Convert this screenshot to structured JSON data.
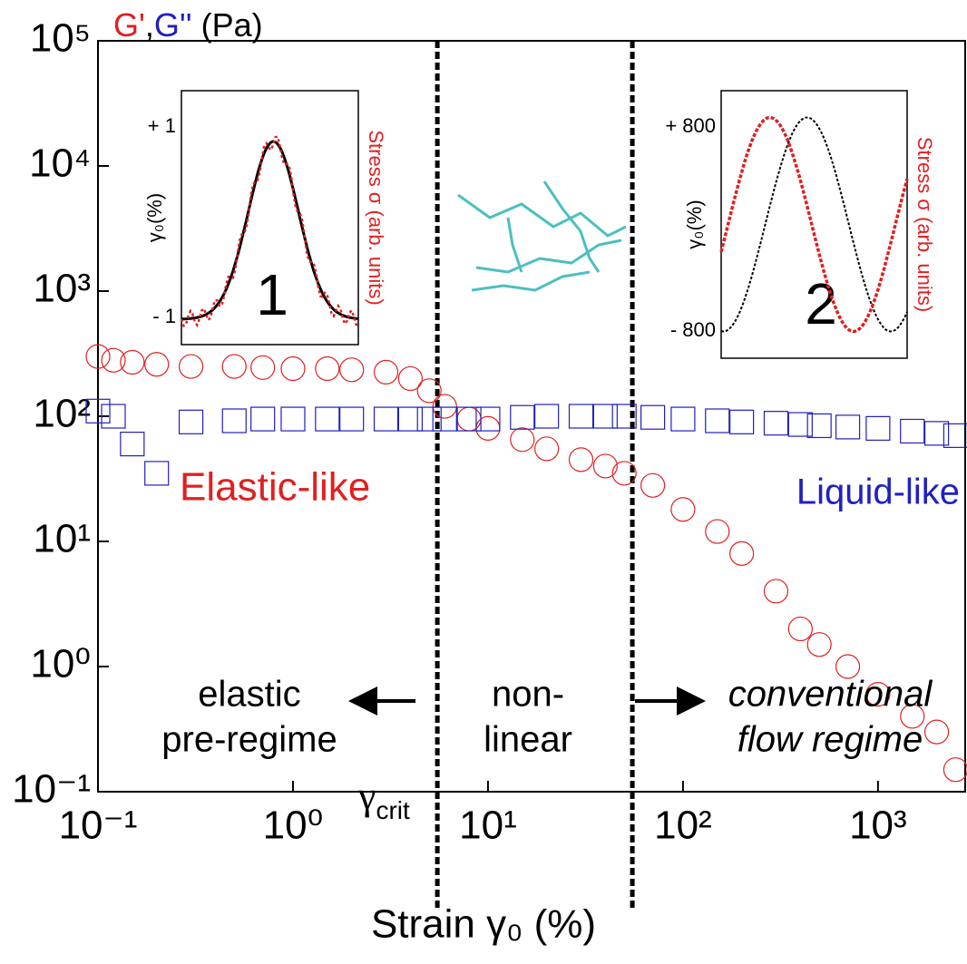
{
  "chart_data": {
    "type": "scatter",
    "log_x": true,
    "log_y": true,
    "xlim": [
      0.1,
      2800
    ],
    "ylim": [
      0.1,
      100000
    ],
    "xticks": [
      {
        "value": 0.1,
        "label": "10⁻¹"
      },
      {
        "value": 1,
        "label": "10⁰"
      },
      {
        "value": 10,
        "label": "10¹"
      },
      {
        "value": 100,
        "label": "10²"
      },
      {
        "value": 1000,
        "label": "10³"
      }
    ],
    "yticks": [
      {
        "value": 0.1,
        "label": "10⁻¹"
      },
      {
        "value": 1,
        "label": "10⁰"
      },
      {
        "value": 10,
        "label": "10¹"
      },
      {
        "value": 100,
        "label": "10²"
      },
      {
        "value": 1000,
        "label": "10³"
      },
      {
        "value": 10000,
        "label": "10⁴"
      },
      {
        "value": 100000,
        "label": "10⁵"
      }
    ],
    "x_label": "Strain γ₀ (%)",
    "y_label_separator": ",",
    "y_label_unit": "(Pa)",
    "x": [
      0.1,
      0.12,
      0.15,
      0.2,
      0.3,
      0.5,
      0.7,
      1,
      1.5,
      2,
      3,
      4,
      5,
      6,
      8,
      10,
      15,
      20,
      30,
      40,
      50,
      70,
      100,
      150,
      200,
      300,
      400,
      500,
      700,
      1000,
      1500,
      2000,
      2500
    ],
    "series": [
      {
        "name": "G'",
        "color": "#e02020",
        "marker": "circle",
        "values": [
          300,
          280,
          270,
          260,
          250,
          250,
          245,
          240,
          240,
          235,
          225,
          200,
          160,
          120,
          95,
          80,
          65,
          55,
          45,
          40,
          35,
          28,
          18,
          12,
          8,
          4,
          2,
          1.5,
          1,
          0.6,
          0.4,
          0.3,
          0.15
        ]
      },
      {
        "name": "G''",
        "color": "#2020c0",
        "marker": "square",
        "values": [
          110,
          100,
          60,
          35,
          90,
          92,
          95,
          95,
          95,
          95,
          95,
          95,
          95,
          95,
          95,
          95,
          98,
          100,
          100,
          100,
          100,
          98,
          95,
          92,
          90,
          88,
          86,
          84,
          82,
          80,
          76,
          73,
          70
        ]
      }
    ],
    "reference_lines": [
      5.5,
      55
    ],
    "crit_label": {
      "symbol": "γ",
      "subscript": "crit"
    },
    "annotations": [
      {
        "text": "Elastic-like",
        "color": "#e02020"
      },
      {
        "text": "Liquid-like",
        "color": "#2020c0"
      },
      {
        "lines": [
          "elastic",
          "pre-regime"
        ]
      },
      {
        "lines": [
          "non-",
          "linear"
        ]
      },
      {
        "lines": [
          "conventional",
          "flow regime"
        ],
        "italic": true
      }
    ],
    "insets": [
      {
        "tick_top": "+ 1",
        "tick_bottom": "- 1",
        "left_label": "γ₀(%)",
        "right_label": "Stress σ (arb. units)",
        "number": "1"
      },
      {
        "tick_top": "+ 800",
        "tick_bottom": "- 800",
        "left_label": "γ₀(%)",
        "right_label": "Stress σ (arb. units)",
        "number": "2"
      }
    ]
  }
}
